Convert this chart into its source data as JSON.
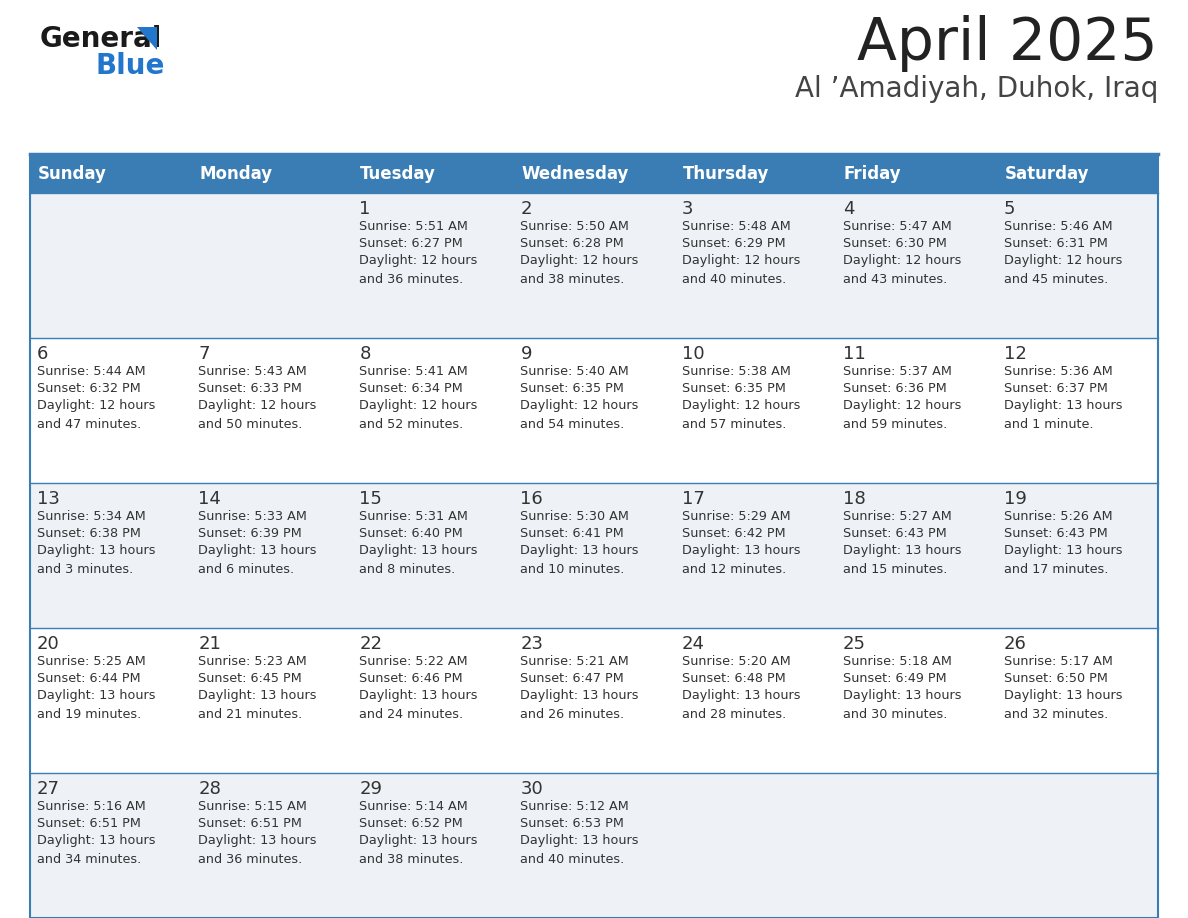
{
  "title": "April 2025",
  "subtitle": "Al ’Amadiyah, Duhok, Iraq",
  "days_of_week": [
    "Sunday",
    "Monday",
    "Tuesday",
    "Wednesday",
    "Thursday",
    "Friday",
    "Saturday"
  ],
  "header_bg": "#3a7db5",
  "header_text_color": "#ffffff",
  "row_bg_light": "#eef2f7",
  "row_bg_white": "#ffffff",
  "cell_border_color": "#3a7db5",
  "title_color": "#222222",
  "subtitle_color": "#444444",
  "text_color": "#333333",
  "logo_general_color": "#1a1a1a",
  "logo_blue_color": "#2277cc",
  "logo_triangle_color": "#2277cc",
  "calendar_data": [
    [
      {
        "day": "",
        "sunrise": "",
        "sunset": "",
        "daylight": ""
      },
      {
        "day": "",
        "sunrise": "",
        "sunset": "",
        "daylight": ""
      },
      {
        "day": "1",
        "sunrise": "5:51 AM",
        "sunset": "6:27 PM",
        "daylight": "12 hours\nand 36 minutes."
      },
      {
        "day": "2",
        "sunrise": "5:50 AM",
        "sunset": "6:28 PM",
        "daylight": "12 hours\nand 38 minutes."
      },
      {
        "day": "3",
        "sunrise": "5:48 AM",
        "sunset": "6:29 PM",
        "daylight": "12 hours\nand 40 minutes."
      },
      {
        "day": "4",
        "sunrise": "5:47 AM",
        "sunset": "6:30 PM",
        "daylight": "12 hours\nand 43 minutes."
      },
      {
        "day": "5",
        "sunrise": "5:46 AM",
        "sunset": "6:31 PM",
        "daylight": "12 hours\nand 45 minutes."
      }
    ],
    [
      {
        "day": "6",
        "sunrise": "5:44 AM",
        "sunset": "6:32 PM",
        "daylight": "12 hours\nand 47 minutes."
      },
      {
        "day": "7",
        "sunrise": "5:43 AM",
        "sunset": "6:33 PM",
        "daylight": "12 hours\nand 50 minutes."
      },
      {
        "day": "8",
        "sunrise": "5:41 AM",
        "sunset": "6:34 PM",
        "daylight": "12 hours\nand 52 minutes."
      },
      {
        "day": "9",
        "sunrise": "5:40 AM",
        "sunset": "6:35 PM",
        "daylight": "12 hours\nand 54 minutes."
      },
      {
        "day": "10",
        "sunrise": "5:38 AM",
        "sunset": "6:35 PM",
        "daylight": "12 hours\nand 57 minutes."
      },
      {
        "day": "11",
        "sunrise": "5:37 AM",
        "sunset": "6:36 PM",
        "daylight": "12 hours\nand 59 minutes."
      },
      {
        "day": "12",
        "sunrise": "5:36 AM",
        "sunset": "6:37 PM",
        "daylight": "13 hours\nand 1 minute."
      }
    ],
    [
      {
        "day": "13",
        "sunrise": "5:34 AM",
        "sunset": "6:38 PM",
        "daylight": "13 hours\nand 3 minutes."
      },
      {
        "day": "14",
        "sunrise": "5:33 AM",
        "sunset": "6:39 PM",
        "daylight": "13 hours\nand 6 minutes."
      },
      {
        "day": "15",
        "sunrise": "5:31 AM",
        "sunset": "6:40 PM",
        "daylight": "13 hours\nand 8 minutes."
      },
      {
        "day": "16",
        "sunrise": "5:30 AM",
        "sunset": "6:41 PM",
        "daylight": "13 hours\nand 10 minutes."
      },
      {
        "day": "17",
        "sunrise": "5:29 AM",
        "sunset": "6:42 PM",
        "daylight": "13 hours\nand 12 minutes."
      },
      {
        "day": "18",
        "sunrise": "5:27 AM",
        "sunset": "6:43 PM",
        "daylight": "13 hours\nand 15 minutes."
      },
      {
        "day": "19",
        "sunrise": "5:26 AM",
        "sunset": "6:43 PM",
        "daylight": "13 hours\nand 17 minutes."
      }
    ],
    [
      {
        "day": "20",
        "sunrise": "5:25 AM",
        "sunset": "6:44 PM",
        "daylight": "13 hours\nand 19 minutes."
      },
      {
        "day": "21",
        "sunrise": "5:23 AM",
        "sunset": "6:45 PM",
        "daylight": "13 hours\nand 21 minutes."
      },
      {
        "day": "22",
        "sunrise": "5:22 AM",
        "sunset": "6:46 PM",
        "daylight": "13 hours\nand 24 minutes."
      },
      {
        "day": "23",
        "sunrise": "5:21 AM",
        "sunset": "6:47 PM",
        "daylight": "13 hours\nand 26 minutes."
      },
      {
        "day": "24",
        "sunrise": "5:20 AM",
        "sunset": "6:48 PM",
        "daylight": "13 hours\nand 28 minutes."
      },
      {
        "day": "25",
        "sunrise": "5:18 AM",
        "sunset": "6:49 PM",
        "daylight": "13 hours\nand 30 minutes."
      },
      {
        "day": "26",
        "sunrise": "5:17 AM",
        "sunset": "6:50 PM",
        "daylight": "13 hours\nand 32 minutes."
      }
    ],
    [
      {
        "day": "27",
        "sunrise": "5:16 AM",
        "sunset": "6:51 PM",
        "daylight": "13 hours\nand 34 minutes."
      },
      {
        "day": "28",
        "sunrise": "5:15 AM",
        "sunset": "6:51 PM",
        "daylight": "13 hours\nand 36 minutes."
      },
      {
        "day": "29",
        "sunrise": "5:14 AM",
        "sunset": "6:52 PM",
        "daylight": "13 hours\nand 38 minutes."
      },
      {
        "day": "30",
        "sunrise": "5:12 AM",
        "sunset": "6:53 PM",
        "daylight": "13 hours\nand 40 minutes."
      },
      {
        "day": "",
        "sunrise": "",
        "sunset": "",
        "daylight": ""
      },
      {
        "day": "",
        "sunrise": "",
        "sunset": "",
        "daylight": ""
      },
      {
        "day": "",
        "sunrise": "",
        "sunset": "",
        "daylight": ""
      }
    ]
  ]
}
